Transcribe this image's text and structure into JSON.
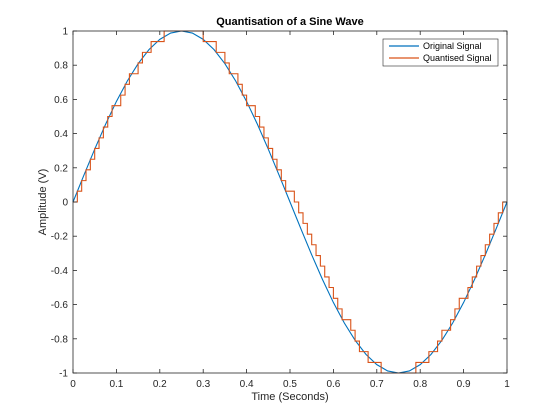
{
  "chart_data": {
    "type": "line",
    "title": "Quantisation of a Sine Wave",
    "xlabel": "Time (Seconds)",
    "ylabel": "Amplitude (V)",
    "xlim": [
      0,
      1
    ],
    "ylim": [
      -1,
      1
    ],
    "xticks": [
      0,
      0.1,
      0.2,
      0.3,
      0.4,
      0.5,
      0.6,
      0.7,
      0.8,
      0.9,
      1
    ],
    "xtick_labels": [
      "0",
      "0.1",
      "0.2",
      "0.3",
      "0.4",
      "0.5",
      "0.6",
      "0.7",
      "0.8",
      "0.9",
      "1"
    ],
    "yticks": [
      -1,
      -0.8,
      -0.6,
      -0.4,
      -0.2,
      0,
      0.2,
      0.4,
      0.6,
      0.8,
      1
    ],
    "ytick_labels": [
      "-1",
      "-0.8",
      "-0.6",
      "-0.4",
      "-0.2",
      "0",
      "0.2",
      "0.4",
      "0.6",
      "0.8",
      "1"
    ],
    "grid": false,
    "legend_position": "top-right",
    "series": [
      {
        "name": "Original Signal",
        "color": "#0072BD",
        "style": "smooth",
        "x": [
          0,
          0.025,
          0.05,
          0.075,
          0.1,
          0.125,
          0.15,
          0.175,
          0.2,
          0.225,
          0.25,
          0.275,
          0.3,
          0.325,
          0.35,
          0.375,
          0.4,
          0.425,
          0.45,
          0.475,
          0.5,
          0.525,
          0.55,
          0.575,
          0.6,
          0.625,
          0.65,
          0.675,
          0.7,
          0.725,
          0.75,
          0.775,
          0.8,
          0.825,
          0.85,
          0.875,
          0.9,
          0.925,
          0.95,
          0.975,
          1
        ],
        "y": [
          0,
          0.156,
          0.309,
          0.454,
          0.588,
          0.707,
          0.809,
          0.891,
          0.951,
          0.988,
          1,
          0.988,
          0.951,
          0.891,
          0.809,
          0.707,
          0.588,
          0.454,
          0.309,
          0.156,
          0,
          -0.156,
          -0.309,
          -0.454,
          -0.588,
          -0.707,
          -0.809,
          -0.891,
          -0.951,
          -0.988,
          -1,
          -0.988,
          -0.951,
          -0.891,
          -0.809,
          -0.707,
          -0.588,
          -0.454,
          -0.309,
          -0.156,
          0
        ]
      },
      {
        "name": "Quantised Signal",
        "color": "#D95319",
        "style": "stairs",
        "x": [
          0,
          0.01,
          0.02,
          0.03,
          0.04,
          0.05,
          0.06,
          0.07,
          0.08,
          0.09,
          0.1,
          0.11,
          0.12,
          0.13,
          0.14,
          0.15,
          0.16,
          0.17,
          0.18,
          0.19,
          0.2,
          0.21,
          0.22,
          0.23,
          0.24,
          0.25,
          0.26,
          0.27,
          0.28,
          0.29,
          0.3,
          0.31,
          0.32,
          0.33,
          0.34,
          0.35,
          0.36,
          0.37,
          0.38,
          0.39,
          0.4,
          0.41,
          0.42,
          0.43,
          0.44,
          0.45,
          0.46,
          0.47,
          0.48,
          0.49,
          0.5,
          0.51,
          0.52,
          0.53,
          0.54,
          0.55,
          0.56,
          0.57,
          0.58,
          0.59,
          0.6,
          0.61,
          0.62,
          0.63,
          0.64,
          0.65,
          0.66,
          0.67,
          0.68,
          0.69,
          0.7,
          0.71,
          0.72,
          0.73,
          0.74,
          0.75,
          0.76,
          0.77,
          0.78,
          0.79,
          0.8,
          0.81,
          0.82,
          0.83,
          0.84,
          0.85,
          0.86,
          0.87,
          0.88,
          0.89,
          0.9,
          0.91,
          0.92,
          0.93,
          0.94,
          0.95,
          0.96,
          0.97,
          0.98,
          0.99,
          1
        ],
        "y": [
          0,
          0.063,
          0.125,
          0.188,
          0.25,
          0.313,
          0.375,
          0.438,
          0.5,
          0.563,
          0.563,
          0.625,
          0.688,
          0.75,
          0.75,
          0.813,
          0.875,
          0.875,
          0.938,
          0.938,
          0.938,
          1,
          1,
          1,
          1,
          1,
          1,
          1,
          1,
          1,
          0.938,
          0.938,
          0.938,
          0.875,
          0.875,
          0.813,
          0.75,
          0.75,
          0.688,
          0.625,
          0.563,
          0.563,
          0.5,
          0.438,
          0.375,
          0.313,
          0.25,
          0.188,
          0.125,
          0.063,
          0.063,
          0,
          -0.063,
          -0.125,
          -0.188,
          -0.25,
          -0.313,
          -0.375,
          -0.438,
          -0.5,
          -0.563,
          -0.625,
          -0.688,
          -0.688,
          -0.75,
          -0.813,
          -0.875,
          -0.875,
          -0.938,
          -0.938,
          -0.938,
          -1,
          -1,
          -1,
          -1,
          -1,
          -1,
          -1,
          -1,
          -0.938,
          -0.938,
          -0.938,
          -0.875,
          -0.875,
          -0.813,
          -0.75,
          -0.75,
          -0.688,
          -0.625,
          -0.563,
          -0.563,
          -0.5,
          -0.438,
          -0.375,
          -0.313,
          -0.25,
          -0.188,
          -0.125,
          -0.063,
          0,
          0
        ]
      }
    ]
  }
}
